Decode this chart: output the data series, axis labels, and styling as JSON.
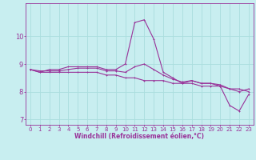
{
  "title": "",
  "xlabel": "Windchill (Refroidissement éolien,°C)",
  "background_color": "#c8eef0",
  "grid_color": "#aadddd",
  "line_color": "#993399",
  "xlim": [
    -0.5,
    23.5
  ],
  "ylim": [
    6.8,
    11.2
  ],
  "yticks": [
    7,
    8,
    9,
    10
  ],
  "xticks": [
    0,
    1,
    2,
    3,
    4,
    5,
    6,
    7,
    8,
    9,
    10,
    11,
    12,
    13,
    14,
    15,
    16,
    17,
    18,
    19,
    20,
    21,
    22,
    23
  ],
  "series1": [
    8.8,
    8.7,
    8.8,
    8.8,
    8.9,
    8.9,
    8.9,
    8.9,
    8.8,
    8.8,
    9.0,
    10.5,
    10.6,
    9.9,
    8.7,
    8.5,
    8.3,
    8.4,
    8.3,
    8.3,
    8.2,
    7.5,
    7.3,
    7.9
  ],
  "series2": [
    8.8,
    8.7,
    8.7,
    8.7,
    8.7,
    8.7,
    8.7,
    8.7,
    8.6,
    8.6,
    8.5,
    8.5,
    8.4,
    8.4,
    8.4,
    8.3,
    8.3,
    8.3,
    8.2,
    8.2,
    8.2,
    8.1,
    8.1,
    8.0
  ],
  "series3": [
    8.8,
    8.75,
    8.75,
    8.75,
    8.8,
    8.85,
    8.85,
    8.85,
    8.75,
    8.75,
    8.7,
    8.9,
    9.0,
    8.8,
    8.6,
    8.45,
    8.35,
    8.4,
    8.3,
    8.3,
    8.25,
    8.1,
    8.0,
    8.1
  ],
  "tick_fontsize": 5.0,
  "xlabel_fontsize": 5.5,
  "lw": 0.8,
  "ms": 2.0
}
